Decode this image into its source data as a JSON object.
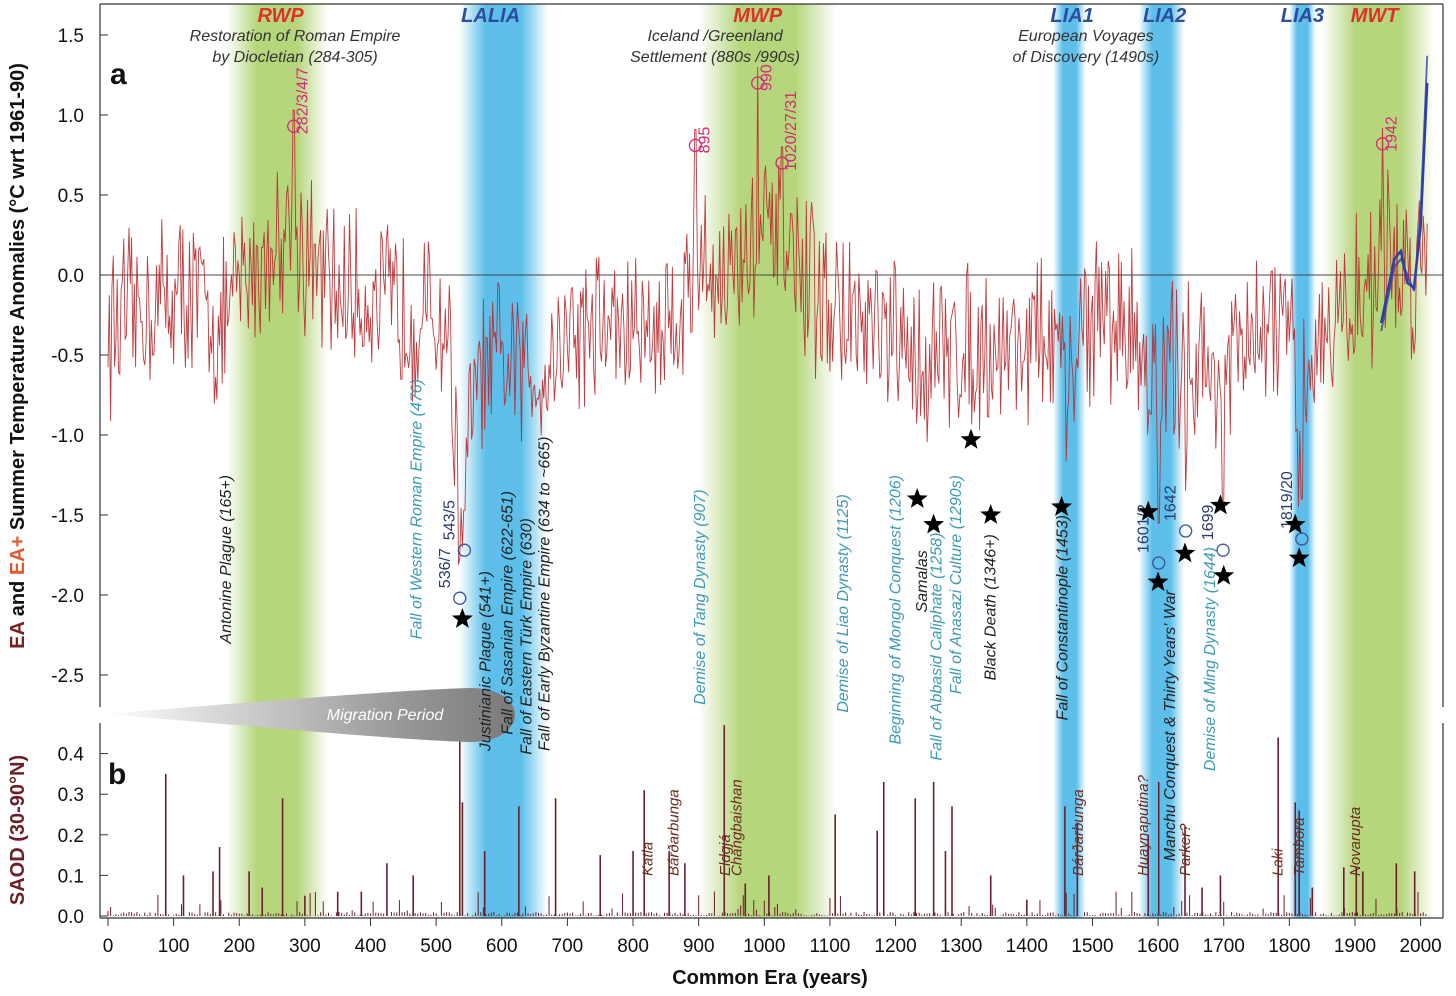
{
  "chart_data": [
    {
      "panel": "a",
      "type": "line",
      "ylabel_parts": [
        "EA",
        " and ",
        "EA+",
        " Summer Temperature Anomalies (°C wrt 1961-90)"
      ],
      "ylim": [
        -2.75,
        1.68
      ],
      "xlim": [
        -5,
        2025
      ],
      "y_ticks": [
        "1.5",
        "1.0",
        "0.5",
        "0.0",
        "-0.5",
        "-1.0",
        "-1.5",
        "-2.0",
        "-2.5"
      ],
      "y_tick_values": [
        1.5,
        1.0,
        0.5,
        0.0,
        -0.5,
        -1.0,
        -1.5,
        -2.0,
        -2.5
      ],
      "series_keyframes": {
        "x": [
          0,
          40,
          80,
          120,
          150,
          170,
          200,
          240,
          270,
          285,
          300,
          330,
          360,
          400,
          440,
          480,
          520,
          536,
          541,
          560,
          600,
          630,
          660,
          700,
          750,
          800,
          850,
          880,
          900,
          940,
          970,
          990,
          1010,
          1030,
          1060,
          1100,
          1150,
          1200,
          1230,
          1260,
          1300,
          1350,
          1400,
          1430,
          1450,
          1460,
          1480,
          1520,
          1560,
          1580,
          1600,
          1620,
          1650,
          1680,
          1700,
          1740,
          1780,
          1800,
          1815,
          1830,
          1860,
          1900,
          1930,
          1942,
          1960,
          1990,
          2010
        ],
        "y": [
          -0.35,
          -0.25,
          -0.15,
          -0.1,
          -0.2,
          -0.4,
          -0.05,
          0.1,
          0.3,
          0.35,
          0.1,
          -0.05,
          -0.1,
          -0.15,
          -0.2,
          -0.25,
          -0.35,
          -1.6,
          -1.3,
          -0.7,
          -0.55,
          -0.6,
          -0.6,
          -0.35,
          -0.3,
          -0.35,
          -0.3,
          -0.15,
          0.05,
          0.0,
          0.1,
          0.25,
          0.2,
          0.1,
          -0.05,
          -0.2,
          -0.35,
          -0.45,
          -0.55,
          -0.5,
          -0.45,
          -0.45,
          -0.4,
          -0.4,
          -0.5,
          -0.9,
          -0.3,
          -0.25,
          -0.35,
          -0.5,
          -0.75,
          -0.55,
          -0.5,
          -0.6,
          -0.6,
          -0.45,
          -0.3,
          -0.4,
          -1.1,
          -0.5,
          -0.3,
          -0.2,
          0.0,
          0.2,
          0.05,
          0.0,
          0.2
        ]
      },
      "instrumental_x": [
        1940,
        1950,
        1960,
        1970,
        1980,
        1990,
        2000,
        2010
      ],
      "instrumental_y": [
        -0.3,
        -0.1,
        0.1,
        0.15,
        -0.05,
        -0.08,
        0.3,
        1.2
      ],
      "instrumental_y2": [
        -0.35,
        -0.15,
        0.05,
        0.1,
        0.0,
        -0.1,
        0.4,
        1.37
      ],
      "periods": [
        {
          "label": "RWP",
          "start": 180,
          "end": 335,
          "type": "warm"
        },
        {
          "label": "LALIA",
          "start": 535,
          "end": 670,
          "type": "cold"
        },
        {
          "label": "MWP",
          "start": 900,
          "end": 1110,
          "type": "warm"
        },
        {
          "label": "LIA1",
          "start": 1440,
          "end": 1490,
          "type": "cold"
        },
        {
          "label": "LIA2",
          "start": 1570,
          "end": 1640,
          "type": "cold"
        },
        {
          "label": "LIA3",
          "start": 1800,
          "end": 1840,
          "type": "cold"
        },
        {
          "label": "MWT",
          "start": 1850,
          "end": 2020,
          "type": "warm"
        }
      ],
      "period_labels": [
        {
          "label": "RWP",
          "x": 263,
          "color": "red",
          "sub": [
            "Restoration of Roman Empire",
            "by Diocletian (284-305)"
          ],
          "sub_x": 285
        },
        {
          "label": "LALIA",
          "x": 583,
          "color": "blue"
        },
        {
          "label": "MWP",
          "x": 990,
          "color": "red",
          "sub": [
            "Iceland /Greenland",
            "Settlement (880s /990s)"
          ],
          "sub_x": 925
        },
        {
          "label": "LIA1",
          "x": 1469,
          "color": "blue",
          "sub": [
            "European Voyages",
            "of Discovery (1490s)"
          ],
          "sub_x": 1490
        },
        {
          "label": "LIA2",
          "x": 1610,
          "color": "blue"
        },
        {
          "label": "LIA3",
          "x": 1820,
          "color": "blue"
        },
        {
          "label": "MWT",
          "x": 1930,
          "color": "red"
        }
      ],
      "warm_extremes": [
        {
          "label": "282/3/4/7",
          "x": 283,
          "y": 0.93
        },
        {
          "label": "895",
          "x": 895,
          "y": 0.81
        },
        {
          "label": "990",
          "x": 990,
          "y": 1.2
        },
        {
          "label": "1020/27/31",
          "x": 1027,
          "y": 0.7
        },
        {
          "label": "1942",
          "x": 1942,
          "y": 0.82
        }
      ],
      "cold_extremes": [
        {
          "label": "536/7",
          "x": 536,
          "y": -2.02
        },
        {
          "label": "543/5",
          "x": 543,
          "y": -1.72
        },
        {
          "label": "1601/2",
          "x": 1601,
          "y": -1.8
        },
        {
          "label": "1642",
          "x": 1642,
          "y": -1.6
        },
        {
          "label": "1699",
          "x": 1699,
          "y": -1.72
        },
        {
          "label": "1819/20",
          "x": 1819,
          "y": -1.65
        }
      ],
      "volcanic_stars": [
        {
          "x": 540,
          "y": -2.15
        },
        {
          "x": 1233,
          "y": -1.4
        },
        {
          "x": 1258,
          "y": -1.56
        },
        {
          "x": 1315,
          "y": -1.03
        },
        {
          "x": 1345,
          "y": -1.5
        },
        {
          "x": 1453,
          "y": -1.45
        },
        {
          "x": 1585,
          "y": -1.48
        },
        {
          "x": 1600,
          "y": -1.92
        },
        {
          "x": 1641,
          "y": -1.74
        },
        {
          "x": 1695,
          "y": -1.44
        },
        {
          "x": 1700,
          "y": -1.88
        },
        {
          "x": 1809,
          "y": -1.56
        },
        {
          "x": 1815,
          "y": -1.77
        }
      ],
      "events": [
        {
          "label": "Antonine Plague (165+)",
          "x": 180,
          "y_top": -1.25,
          "color": "#222"
        },
        {
          "label": "Fall of Western Roman Empire (476)",
          "x": 470,
          "y_top": -0.65,
          "color": "#3b9ab5"
        },
        {
          "label": "Justinianic Plague (541+)",
          "x": 575,
          "y_top": -1.85,
          "color": "#222"
        },
        {
          "label": "Fall of Sasanian Empire (622-651)",
          "x": 609,
          "y_top": -1.35,
          "color": "#222"
        },
        {
          "label": "Fall of Eastern Türk Empire (630)",
          "x": 638,
          "y_top": -1.52,
          "color": "#222"
        },
        {
          "label": "Fall of Early Byzantine Empire (634 to ~665)",
          "x": 665,
          "y_top": -1.01,
          "color": "#222"
        },
        {
          "label": "Demise of Tang Dynasty (907)",
          "x": 902,
          "y_top": -1.34,
          "color": "#3b9ab5"
        },
        {
          "label": "Demise of Liao Dynasty (1125)",
          "x": 1120,
          "y_top": -1.37,
          "color": "#3b9ab5"
        },
        {
          "label": "Beginning of Mongol Conquest (1206)",
          "x": 1200,
          "y_top": -1.25,
          "color": "#3b9ab5"
        },
        {
          "label": "Samalas",
          "x": 1240,
          "y_top": -1.72,
          "color": "#222"
        },
        {
          "label": "Fall of Abbasid Caliphate (1258)",
          "x": 1262,
          "y_top": -1.61,
          "color": "#3b9ab5"
        },
        {
          "label": "Fall of Anasazi Culture (1290s)",
          "x": 1292,
          "y_top": -1.25,
          "color": "#3b9ab5"
        },
        {
          "label": "Black Death (1346+)",
          "x": 1345,
          "y_top": -1.62,
          "color": "#222"
        },
        {
          "label": "Fall of Constantinople (1453)",
          "x": 1454,
          "y_top": -1.5,
          "color": "#222"
        },
        {
          "label": "Manchu Conquest & Thirty Years' War",
          "x": 1618,
          "y_top": -1.97,
          "color": "#222"
        },
        {
          "label": "Demise of Ming Dynasty (1644)",
          "x": 1679,
          "y_top": -1.7,
          "color": "#3b9ab5"
        }
      ],
      "migration_label": "Migration Period",
      "panel_label": "a"
    },
    {
      "panel": "b",
      "type": "bar",
      "ylabel_parts": [
        "SAOD (30-90°N)"
      ],
      "ylim": [
        0,
        0.47
      ],
      "y_ticks": [
        "0.4",
        "0.3",
        "0.2",
        "0.1",
        "0.0"
      ],
      "y_tick_values": [
        0.4,
        0.3,
        0.2,
        0.1,
        0.0
      ],
      "x_ticks": [
        "0",
        "100",
        "200",
        "300",
        "400",
        "500",
        "600",
        "700",
        "800",
        "900",
        "1000",
        "1100",
        "1200",
        "1300",
        "1400",
        "1500",
        "1600",
        "1700",
        "1800",
        "1900",
        "2000"
      ],
      "x_tick_values": [
        0,
        100,
        200,
        300,
        400,
        500,
        600,
        700,
        800,
        900,
        1000,
        1100,
        1200,
        1300,
        1400,
        1500,
        1600,
        1700,
        1800,
        1900,
        2000
      ],
      "xlabel": "Common Era (years)",
      "eruption_years": [
        88,
        115,
        160,
        170,
        215,
        235,
        266,
        300,
        350,
        386,
        425,
        465,
        536,
        540,
        574,
        626,
        682,
        750,
        800,
        817,
        855,
        879,
        939,
        971,
        1007,
        1108,
        1172,
        1182,
        1230,
        1258,
        1276,
        1286,
        1345,
        1400,
        1458,
        1477,
        1585,
        1601,
        1641,
        1667,
        1695,
        1783,
        1809,
        1815,
        1835,
        1883,
        1902,
        1912,
        1963,
        1991
      ],
      "eruption_saod": [
        0.35,
        0.1,
        0.11,
        0.17,
        0.11,
        0.07,
        0.29,
        0.05,
        0.06,
        0.06,
        0.13,
        0.1,
        0.46,
        0.28,
        0.16,
        0.27,
        0.29,
        0.15,
        0.16,
        0.31,
        0.16,
        0.13,
        0.47,
        0.08,
        0.1,
        0.25,
        0.21,
        0.33,
        0.29,
        0.33,
        0.16,
        0.27,
        0.1,
        0.04,
        0.27,
        0.23,
        0.2,
        0.33,
        0.22,
        0.07,
        0.1,
        0.44,
        0.28,
        0.26,
        0.07,
        0.12,
        0.12,
        0.11,
        0.13,
        0.11
      ],
      "volcanoes": [
        {
          "label": "Katla",
          "x": 822
        },
        {
          "label": "Bárðarbunga",
          "x": 862
        },
        {
          "label": "Eldgjá",
          "x": 940
        },
        {
          "label": "Changbaishan",
          "x": 958
        },
        {
          "label": "Bárðarbunga",
          "x": 1478
        },
        {
          "label": "Huaynaputina?",
          "x": 1577
        },
        {
          "label": "Parker?",
          "x": 1641
        },
        {
          "label": "Laki",
          "x": 1782
        },
        {
          "label": "Tambora",
          "x": 1815
        },
        {
          "label": "Novarupta",
          "x": 1900
        }
      ],
      "panel_label": "b"
    }
  ],
  "colors": {
    "ea": "#7a1f1f",
    "ea_plus": "#e25a2e",
    "trace": "#b8282b",
    "warm_band": "#a9cf65",
    "cold_band": "#40b4e6",
    "warm_label": "#e0302a",
    "cold_label": "#2b4ea0",
    "extreme_warm": "#d6287a",
    "extreme_cold": "#3a4fa0",
    "instrumental": "#2e3fa5",
    "saod": "#6b1f2c",
    "event_blue": "#3b9ab5"
  }
}
